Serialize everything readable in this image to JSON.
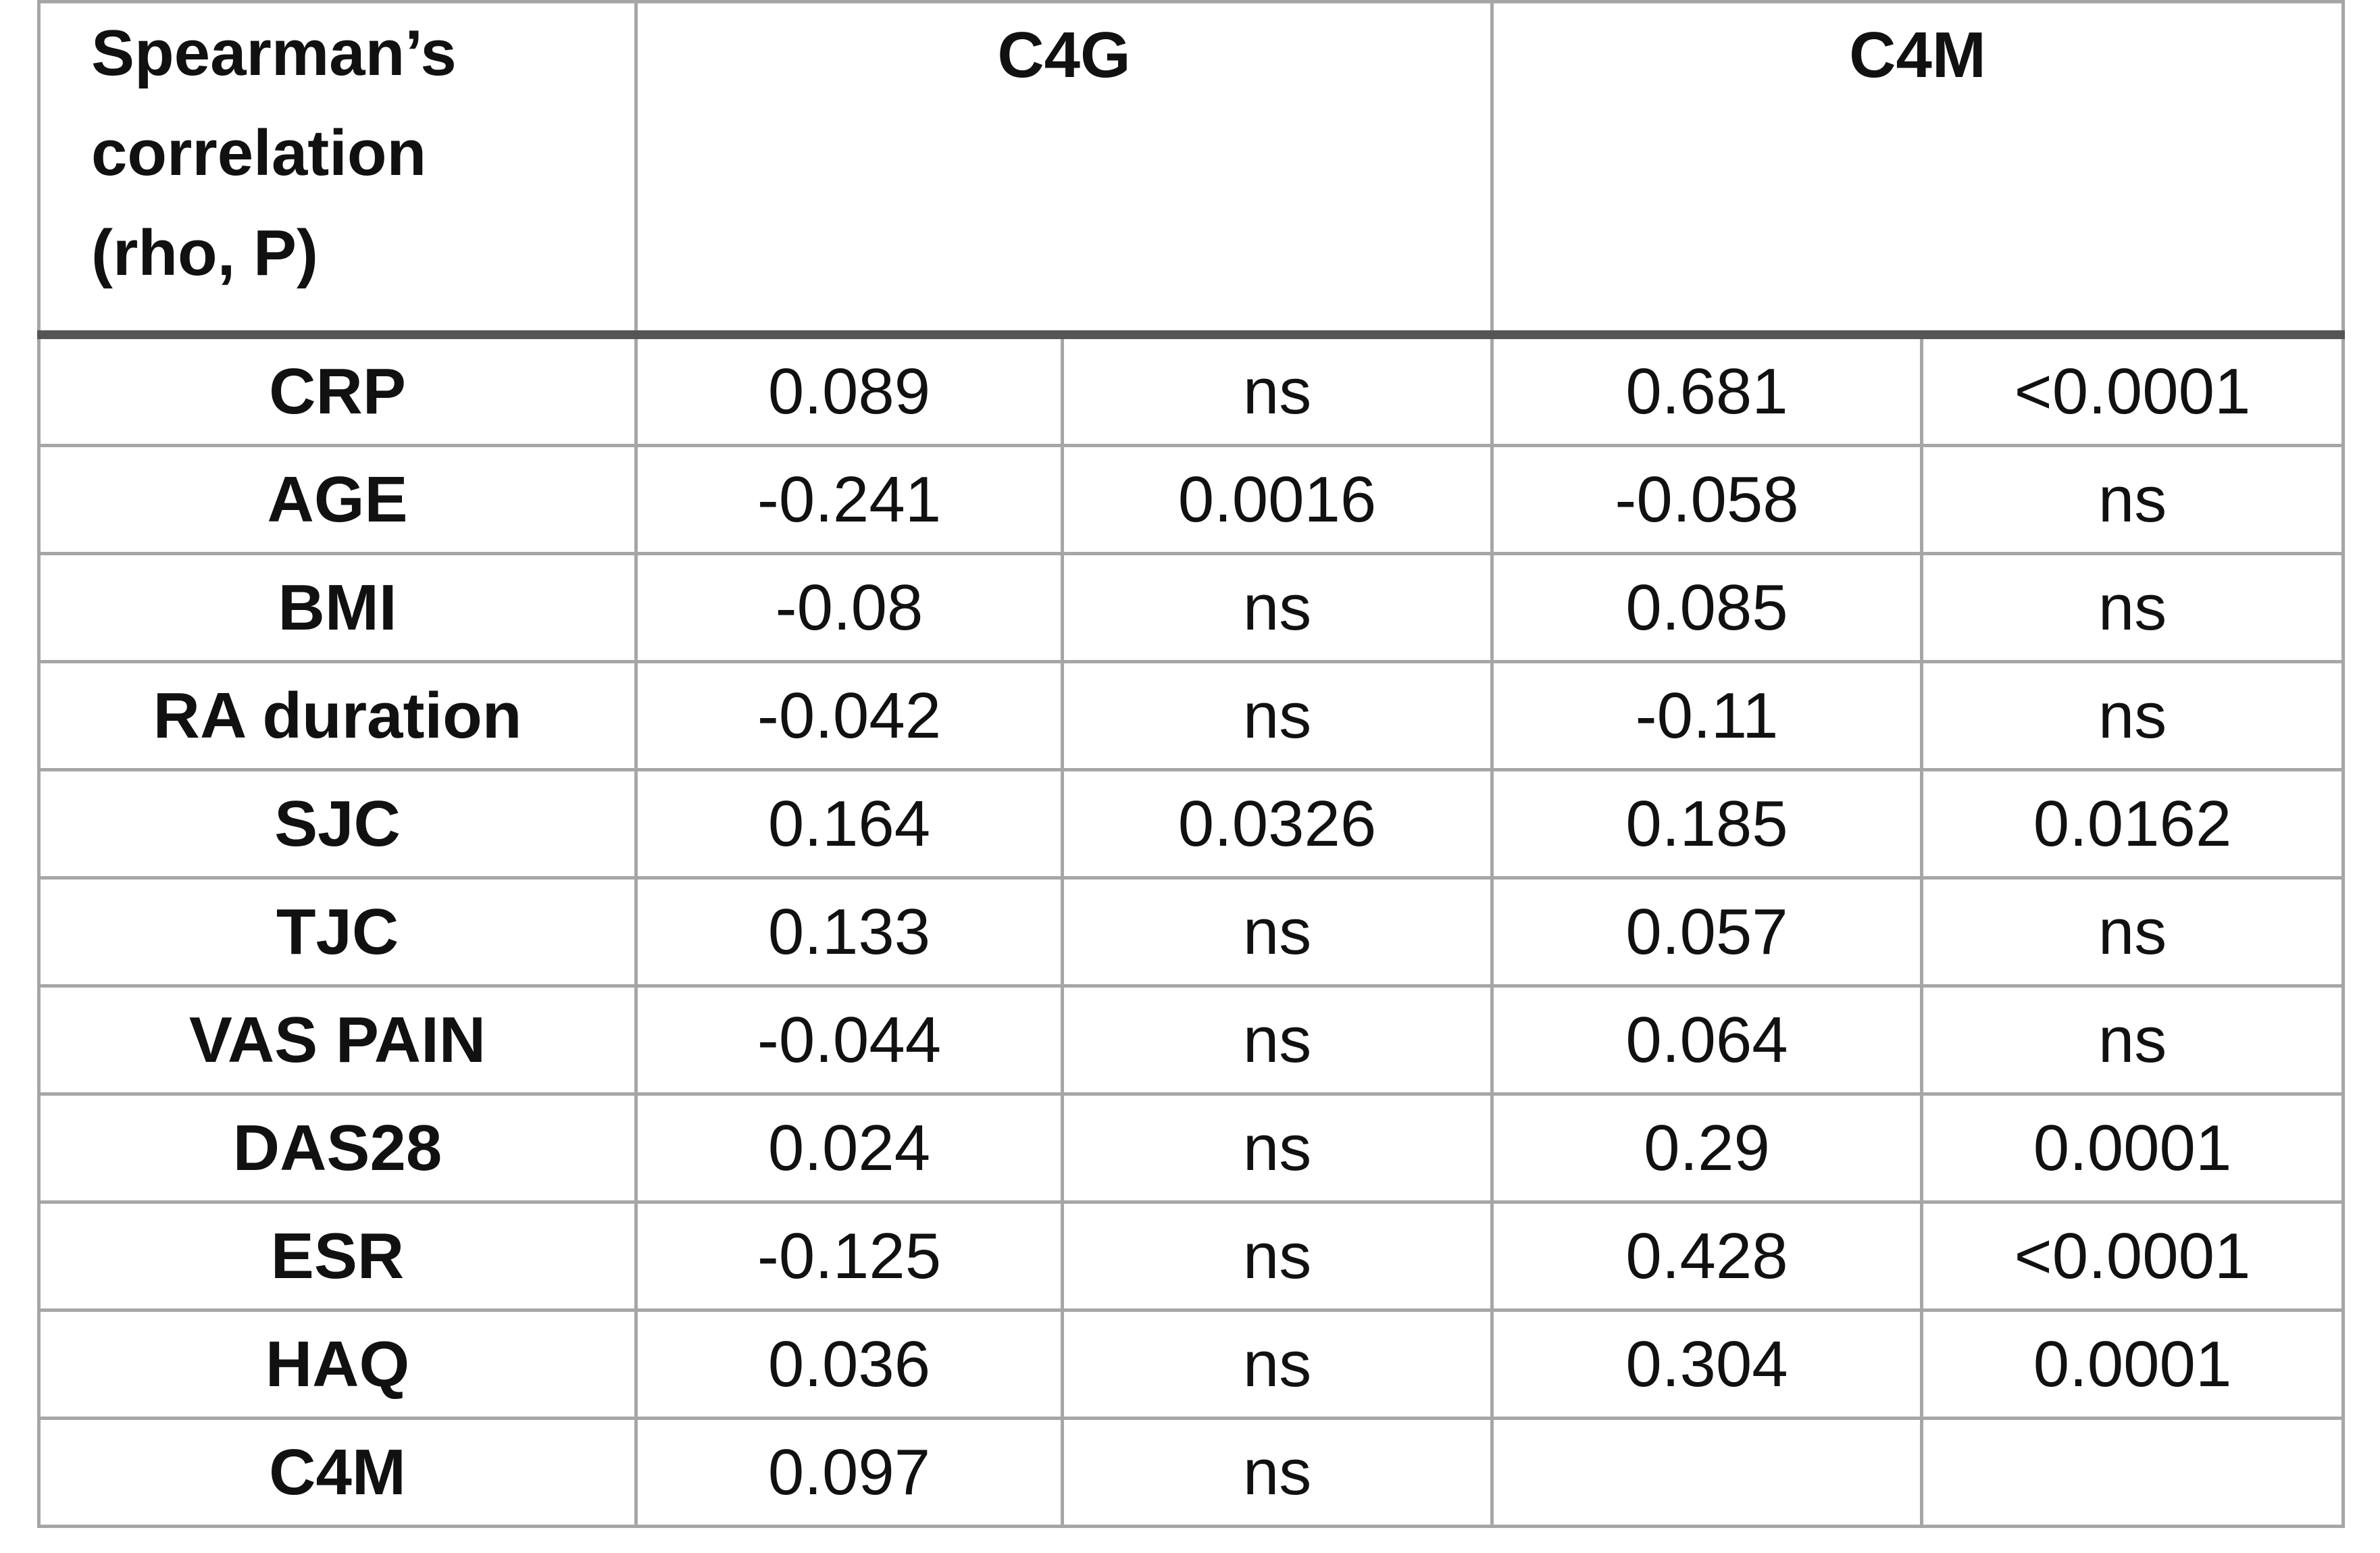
{
  "table": {
    "header": {
      "label_lines": [
        "Spearman’s",
        "correlation",
        "(rho, P)"
      ],
      "groups": [
        "C4G",
        "C4M"
      ]
    },
    "rows": [
      [
        "CRP",
        "0.089",
        "ns",
        "0.681",
        "<0.0001"
      ],
      [
        "AGE",
        "-0.241",
        "0.0016",
        "-0.058",
        "ns"
      ],
      [
        "BMI",
        "-0.08",
        "ns",
        "0.085",
        "ns"
      ],
      [
        "RA duration",
        "-0.042",
        "ns",
        "-0.11",
        "ns"
      ],
      [
        "SJC",
        "0.164",
        "0.0326",
        "0.185",
        "0.0162"
      ],
      [
        "TJC",
        "0.133",
        "ns",
        "0.057",
        "ns"
      ],
      [
        "VAS PAIN",
        "-0.044",
        "ns",
        "0.064",
        "ns"
      ],
      [
        "DAS28",
        "0.024",
        "ns",
        "0.29",
        "0.0001"
      ],
      [
        "ESR",
        "-0.125",
        "ns",
        "0.428",
        "<0.0001"
      ],
      [
        "HAQ",
        "0.036",
        "ns",
        "0.304",
        "0.0001"
      ],
      [
        "C4M",
        "0.097",
        "ns"
      ]
    ]
  }
}
